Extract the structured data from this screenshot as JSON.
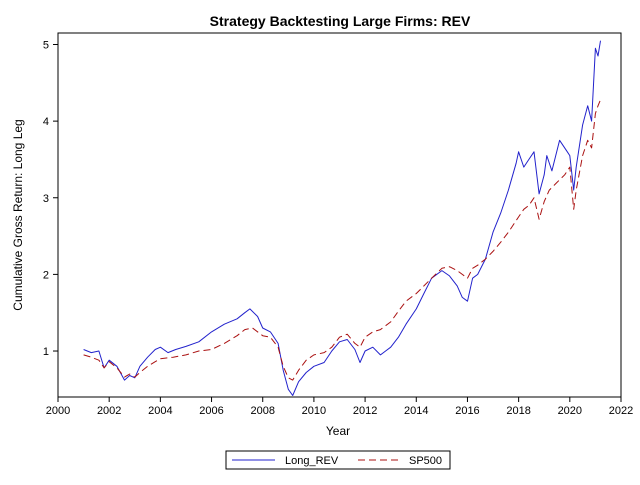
{
  "chart_data": {
    "type": "line",
    "title": "Strategy Backtesting Large Firms: REV",
    "xlabel": "Year",
    "ylabel": "Cumulative Gross Return: Long Leg",
    "xlim": [
      2000,
      2022
    ],
    "ylim": [
      0.4,
      5.15
    ],
    "x_ticks": [
      "2000",
      "2002",
      "2004",
      "2006",
      "2008",
      "2010",
      "2012",
      "2014",
      "2016",
      "2018",
      "2020",
      "2022"
    ],
    "y_ticks": [
      "1",
      "2",
      "3",
      "4",
      "5"
    ],
    "grid": false,
    "legend_position": "bottom-center",
    "series": [
      {
        "name": "Long_REV",
        "color": "#2222cc",
        "style": "solid",
        "x": [
          2001.0,
          2001.3,
          2001.6,
          2001.8,
          2002.0,
          2002.3,
          2002.6,
          2002.8,
          2003.0,
          2003.2,
          2003.5,
          2003.8,
          2004.0,
          2004.3,
          2004.6,
          2005.0,
          2005.5,
          2006.0,
          2006.5,
          2007.0,
          2007.3,
          2007.5,
          2007.8,
          2008.0,
          2008.3,
          2008.6,
          2008.8,
          2009.0,
          2009.17,
          2009.4,
          2009.7,
          2010.0,
          2010.4,
          2010.7,
          2011.0,
          2011.3,
          2011.6,
          2011.8,
          2012.0,
          2012.3,
          2012.6,
          2012.8,
          2013.0,
          2013.3,
          2013.6,
          2014.0,
          2014.3,
          2014.6,
          2015.0,
          2015.3,
          2015.6,
          2015.8,
          2016.0,
          2016.2,
          2016.4,
          2016.7,
          2017.0,
          2017.3,
          2017.6,
          2017.9,
          2018.0,
          2018.2,
          2018.4,
          2018.6,
          2018.8,
          2019.0,
          2019.1,
          2019.3,
          2019.6,
          2019.9,
          2020.0,
          2020.15,
          2020.25,
          2020.5,
          2020.7,
          2020.85,
          2021.0,
          2021.1,
          2021.2
        ],
        "y": [
          1.02,
          0.98,
          1.0,
          0.78,
          0.88,
          0.8,
          0.62,
          0.68,
          0.65,
          0.8,
          0.92,
          1.02,
          1.05,
          0.98,
          1.02,
          1.06,
          1.12,
          1.25,
          1.35,
          1.42,
          1.5,
          1.55,
          1.45,
          1.3,
          1.25,
          1.1,
          0.75,
          0.5,
          0.42,
          0.6,
          0.72,
          0.8,
          0.85,
          1.0,
          1.12,
          1.15,
          1.02,
          0.85,
          1.0,
          1.05,
          0.95,
          1.0,
          1.05,
          1.18,
          1.35,
          1.55,
          1.75,
          1.95,
          2.05,
          1.98,
          1.85,
          1.7,
          1.65,
          1.95,
          2.0,
          2.2,
          2.55,
          2.8,
          3.1,
          3.45,
          3.6,
          3.4,
          3.5,
          3.6,
          3.05,
          3.3,
          3.55,
          3.35,
          3.75,
          3.6,
          3.55,
          3.1,
          3.4,
          3.95,
          4.2,
          4.0,
          4.95,
          4.85,
          5.05
        ]
      },
      {
        "name": "SP500",
        "color": "#aa1111",
        "style": "dashed",
        "x": [
          2001.0,
          2001.3,
          2001.6,
          2001.8,
          2002.0,
          2002.3,
          2002.6,
          2002.8,
          2003.0,
          2003.2,
          2003.5,
          2003.8,
          2004.0,
          2004.5,
          2005.0,
          2005.5,
          2006.0,
          2006.5,
          2007.0,
          2007.3,
          2007.6,
          2008.0,
          2008.3,
          2008.6,
          2008.8,
          2009.0,
          2009.17,
          2009.4,
          2009.7,
          2010.0,
          2010.4,
          2010.7,
          2011.0,
          2011.3,
          2011.6,
          2011.8,
          2012.0,
          2012.3,
          2012.6,
          2013.0,
          2013.3,
          2013.6,
          2014.0,
          2014.3,
          2014.6,
          2015.0,
          2015.3,
          2015.6,
          2015.8,
          2016.0,
          2016.2,
          2016.4,
          2016.7,
          2017.0,
          2017.3,
          2017.6,
          2018.0,
          2018.2,
          2018.4,
          2018.6,
          2018.8,
          2019.0,
          2019.2,
          2019.5,
          2019.8,
          2020.0,
          2020.15,
          2020.25,
          2020.5,
          2020.7,
          2020.85,
          2021.0,
          2021.1,
          2021.2
        ],
        "y": [
          0.95,
          0.92,
          0.88,
          0.78,
          0.86,
          0.78,
          0.66,
          0.7,
          0.66,
          0.72,
          0.8,
          0.86,
          0.9,
          0.92,
          0.95,
          1.0,
          1.02,
          1.1,
          1.2,
          1.28,
          1.3,
          1.2,
          1.18,
          1.05,
          0.8,
          0.65,
          0.62,
          0.75,
          0.88,
          0.95,
          0.98,
          1.05,
          1.18,
          1.22,
          1.1,
          1.05,
          1.18,
          1.25,
          1.28,
          1.38,
          1.52,
          1.65,
          1.75,
          1.85,
          1.95,
          2.08,
          2.1,
          2.05,
          2.0,
          1.95,
          2.08,
          2.12,
          2.2,
          2.3,
          2.42,
          2.55,
          2.75,
          2.85,
          2.9,
          3.0,
          2.72,
          2.95,
          3.1,
          3.2,
          3.3,
          3.4,
          2.85,
          3.1,
          3.55,
          3.75,
          3.65,
          4.1,
          4.2,
          4.28
        ]
      }
    ]
  }
}
